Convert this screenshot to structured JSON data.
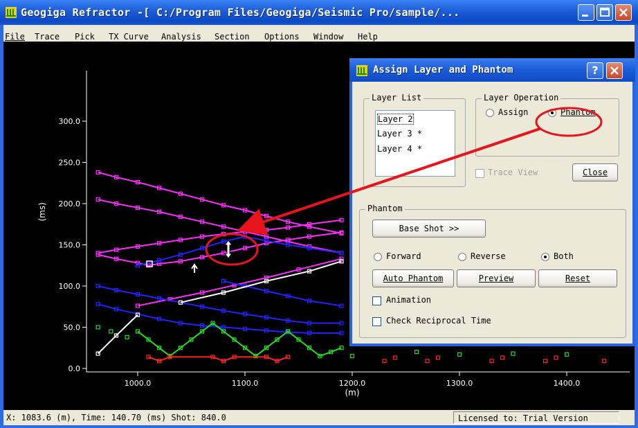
{
  "window": {
    "title": "Geogiga Refractor -[ C:/Program Files/Geogiga/Seismic Pro/sample/...",
    "icon": "app-icon"
  },
  "menu": [
    {
      "label": "File"
    },
    {
      "label": "Trace"
    },
    {
      "label": "Pick"
    },
    {
      "label": "TX Curve"
    },
    {
      "label": "Analysis"
    },
    {
      "label": "Section"
    },
    {
      "label": "Options"
    },
    {
      "label": "Window"
    },
    {
      "label": "Help"
    }
  ],
  "chart_data": {
    "type": "scatter",
    "xlabel": "(m)",
    "ylabel": "(ms)",
    "xlim": [
      950,
      1450
    ],
    "ylim": [
      0,
      340
    ],
    "x_ticks": [
      "1000.0",
      "1100.0",
      "1200.0",
      "1300.0",
      "1400.0"
    ],
    "y_ticks": [
      "0.0",
      "50.0",
      "100.0",
      "150.0",
      "200.0",
      "250.0",
      "300.0"
    ],
    "series": [
      {
        "color": "#ff2bff",
        "line": true,
        "x": [
          963,
          980,
          1000,
          1020,
          1040,
          1060,
          1080,
          1100,
          1120,
          1140,
          1160,
          1190
        ],
        "y": [
          238,
          232,
          226,
          219,
          212,
          205,
          198,
          192,
          185,
          178,
          172,
          164
        ]
      },
      {
        "color": "#ff2bff",
        "line": true,
        "x": [
          963,
          980,
          1000,
          1020,
          1040,
          1060,
          1080,
          1100,
          1120,
          1140,
          1160,
          1190
        ],
        "y": [
          205,
          200,
          195,
          190,
          184,
          178,
          172,
          166,
          160,
          154,
          148,
          140
        ]
      },
      {
        "color": "#ff2bff",
        "line": true,
        "x": [
          963,
          980,
          1000,
          1020,
          1040,
          1060,
          1080,
          1100,
          1120,
          1140,
          1160,
          1190
        ],
        "y": [
          140,
          144,
          148,
          152,
          156,
          160,
          163,
          166,
          168,
          171,
          175,
          180
        ]
      },
      {
        "color": "#ff2bff",
        "line": true,
        "x": [
          963,
          980,
          1000,
          1010,
          1020,
          1040,
          1060,
          1080,
          1100,
          1120,
          1140,
          1160,
          1190
        ],
        "y": [
          138,
          133,
          128,
          125,
          127,
          130,
          135,
          140,
          146,
          152,
          156,
          160,
          165
        ]
      },
      {
        "color": "#ff2bff",
        "line": true,
        "x": [
          1000,
          1030,
          1060,
          1090,
          1120,
          1150,
          1190
        ],
        "y": [
          76,
          84,
          92,
          101,
          110,
          120,
          133
        ]
      },
      {
        "color": "#2222ff",
        "line": true,
        "x": [
          963,
          980,
          1000,
          1020,
          1040,
          1060,
          1080,
          1100,
          1120,
          1140,
          1160,
          1190
        ],
        "y": [
          100,
          95,
          90,
          85,
          80,
          75,
          70,
          66,
          62,
          58,
          55,
          55
        ]
      },
      {
        "color": "#2222ff",
        "line": true,
        "x": [
          963,
          980,
          1000,
          1020,
          1040,
          1060,
          1080,
          1100,
          1120,
          1140,
          1160,
          1190
        ],
        "y": [
          78,
          72,
          66,
          60,
          55,
          52,
          50,
          48,
          46,
          44,
          43,
          43
        ]
      },
      {
        "color": "#2222ff",
        "line": true,
        "x": [
          1000,
          1020,
          1040,
          1060,
          1080,
          1100,
          1120,
          1140,
          1160,
          1190
        ],
        "y": [
          125,
          131,
          138,
          146,
          154,
          160,
          155,
          150,
          146,
          140
        ]
      },
      {
        "color": "#2222ff",
        "line": true,
        "x": [
          1080,
          1100,
          1120,
          1140,
          1160,
          1190
        ],
        "y": [
          106,
          100,
          94,
          88,
          82,
          76
        ]
      },
      {
        "color": "#22dd22",
        "line": true,
        "x": [
          1000,
          1010,
          1020,
          1030,
          1040,
          1050,
          1060,
          1070,
          1080,
          1090,
          1100,
          1110,
          1120,
          1130,
          1140,
          1150,
          1160,
          1170,
          1180,
          1190
        ],
        "y": [
          45,
          35,
          25,
          15,
          25,
          35,
          45,
          55,
          45,
          35,
          25,
          15,
          25,
          35,
          45,
          35,
          25,
          15,
          20,
          25
        ]
      },
      {
        "color": "#ffffff",
        "line": true,
        "x": [
          963,
          980,
          1000
        ],
        "y": [
          18,
          40,
          65
        ]
      },
      {
        "color": "#ffffff",
        "line": true,
        "x": [
          1040,
          1080,
          1120,
          1160,
          1190
        ],
        "y": [
          80,
          92,
          106,
          118,
          130
        ]
      },
      {
        "color": "#ff2222",
        "line": true,
        "x": [
          1010,
          1020,
          1030,
          1070,
          1080,
          1090,
          1120,
          1130,
          1140
        ],
        "y": [
          14,
          9,
          14,
          14,
          9,
          14,
          14,
          9,
          14
        ]
      },
      {
        "color": "#22dd22",
        "line": false,
        "x": [
          963,
          975,
          990
        ],
        "y": [
          50,
          45,
          38
        ]
      },
      {
        "color": "#ff2222",
        "line": false,
        "x": [
          1230,
          1240,
          1270,
          1280,
          1330,
          1340,
          1380,
          1390,
          1435
        ],
        "y": [
          9,
          13,
          9,
          13,
          9,
          13,
          9,
          13,
          9
        ]
      },
      {
        "color": "#22dd22",
        "line": false,
        "x": [
          1200,
          1260,
          1300,
          1350,
          1400
        ],
        "y": [
          15,
          20,
          17,
          18,
          17
        ]
      }
    ]
  },
  "annotations": {
    "cursor": "resize-vertical-cursor",
    "marker": "white-square-marker",
    "arrow_icon": "up-arrow-icon"
  },
  "status": {
    "coords": "X: 1083.6 (m), Time: 140.70 (ms) Shot: 840.0",
    "license": "Licensed to: Trial Version"
  },
  "dialog": {
    "title": "Assign Layer and Phantom",
    "layer_list": {
      "label": "Layer List",
      "items": [
        "Layer 2",
        "Layer 3 *",
        "Layer 4 *"
      ],
      "selected_index": 0
    },
    "layer_operation": {
      "label": "Layer Operation",
      "assign_label": "Assign",
      "phantom_label": "Phantom",
      "selected": "phantom"
    },
    "trace_view_label": "Trace View",
    "close_label": "Close",
    "phantom": {
      "label": "Phantom",
      "base_shot_label": "Base Shot >>",
      "forward_label": "Forward",
      "reverse_label": "Reverse",
      "both_label": "Both",
      "direction_selected": "both",
      "auto_phantom_label": "Auto Phantom",
      "preview_label": "Preview",
      "reset_label": "Reset",
      "animation_label": "Animation",
      "check_reciprocal_label": "Check Reciprocal Time"
    }
  },
  "colors": {
    "title_blue": "#1f5fd8",
    "dialog_face": "#ece9d8",
    "highlight_red": "#e8141c"
  }
}
